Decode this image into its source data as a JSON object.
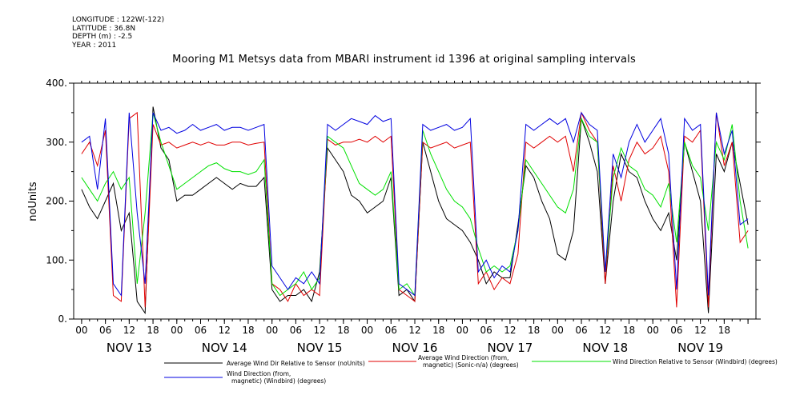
{
  "header": {
    "lines": [
      "LONGITUDE : 122W(-122)",
      "LATITUDE : 36.8N",
      "DEPTH (m) : -2.5",
      "YEAR : 2011"
    ]
  },
  "colors": {
    "black": "#000000",
    "red": "#e00000",
    "green": "#00e000",
    "blue": "#0000e0"
  },
  "chart_data": {
    "type": "line",
    "title": "Mooring M1 Metsys data from MBARI instrument id 1396 at original sampling intervals",
    "ylabel": "noUnits",
    "xlabel": "",
    "ylim": [
      0,
      400
    ],
    "yticks": [
      0,
      100,
      200,
      300,
      400
    ],
    "ytick_labels": [
      "0.",
      "100.",
      "200.",
      "300.",
      "400."
    ],
    "x_unit": "hours since NOV 13 00:00, 2011",
    "xlim": [
      -2,
      170
    ],
    "hour_tick_labels": [
      "00",
      "06",
      "12",
      "18"
    ],
    "day_labels": [
      "NOV 13",
      "NOV 14",
      "NOV 15",
      "NOV 16",
      "NOV 17",
      "NOV 18",
      "NOV 19"
    ],
    "grid": false,
    "legend_position": "bottom",
    "series": [
      {
        "name": "Average Wind Dir Relative to Sensor (noUnits)",
        "color": "black",
        "x": [
          0,
          2,
          4,
          6,
          8,
          10,
          12,
          14,
          16,
          18,
          20,
          22,
          24,
          26,
          28,
          30,
          32,
          34,
          36,
          38,
          40,
          42,
          44,
          46,
          48,
          50,
          52,
          54,
          56,
          58,
          60,
          62,
          64,
          66,
          68,
          70,
          72,
          74,
          76,
          78,
          80,
          82,
          84,
          86,
          88,
          90,
          92,
          94,
          96,
          98,
          100,
          102,
          104,
          106,
          108,
          110,
          112,
          114,
          116,
          118,
          120,
          122,
          124,
          126,
          128,
          130,
          132,
          134,
          136,
          138,
          140,
          142,
          144,
          146,
          148,
          150,
          152,
          154,
          156,
          158,
          160,
          162,
          164,
          166,
          168
        ],
        "values": [
          220,
          190,
          170,
          200,
          230,
          150,
          180,
          30,
          10,
          360,
          290,
          270,
          200,
          210,
          210,
          220,
          230,
          240,
          230,
          220,
          230,
          225,
          225,
          240,
          50,
          30,
          40,
          40,
          50,
          30,
          80,
          290,
          270,
          250,
          210,
          200,
          180,
          190,
          200,
          240,
          40,
          50,
          30,
          300,
          250,
          200,
          170,
          160,
          150,
          130,
          100,
          60,
          80,
          70,
          70,
          160,
          260,
          240,
          200,
          170,
          110,
          100,
          150,
          340,
          300,
          250,
          60,
          200,
          280,
          250,
          240,
          200,
          170,
          150,
          180,
          100,
          300,
          250,
          200,
          10,
          280,
          250,
          300,
          230,
          160
        ]
      },
      {
        "name": "Average Wind Direction (from, magnetic) (Sonic-n/a) (degrees)",
        "color": "red",
        "x": [
          0,
          2,
          4,
          6,
          8,
          10,
          12,
          14,
          16,
          18,
          20,
          22,
          24,
          26,
          28,
          30,
          32,
          34,
          36,
          38,
          40,
          42,
          44,
          46,
          48,
          50,
          52,
          54,
          56,
          58,
          60,
          62,
          64,
          66,
          68,
          70,
          72,
          74,
          76,
          78,
          80,
          82,
          84,
          86,
          88,
          90,
          92,
          94,
          96,
          98,
          100,
          102,
          104,
          106,
          108,
          110,
          112,
          114,
          116,
          118,
          120,
          122,
          124,
          126,
          128,
          130,
          132,
          134,
          136,
          138,
          140,
          142,
          144,
          146,
          148,
          150,
          152,
          154,
          156,
          158,
          160,
          162,
          164,
          166,
          168
        ],
        "values": [
          280,
          300,
          260,
          320,
          40,
          30,
          340,
          350,
          20,
          330,
          295,
          300,
          290,
          295,
          300,
          295,
          300,
          295,
          295,
          300,
          300,
          295,
          298,
          300,
          60,
          50,
          30,
          60,
          40,
          50,
          40,
          305,
          295,
          300,
          300,
          305,
          300,
          310,
          300,
          310,
          50,
          40,
          30,
          300,
          290,
          295,
          300,
          290,
          295,
          300,
          60,
          80,
          50,
          70,
          60,
          110,
          300,
          290,
          300,
          310,
          300,
          310,
          250,
          350,
          320,
          300,
          60,
          260,
          200,
          270,
          300,
          280,
          290,
          310,
          250,
          20,
          310,
          300,
          320,
          20,
          350,
          260,
          300,
          130,
          150
        ]
      },
      {
        "name": "Wind Direction Relative to Sensor (Windbird) (degrees)",
        "color": "green",
        "x": [
          0,
          2,
          4,
          6,
          8,
          10,
          12,
          14,
          16,
          18,
          20,
          22,
          24,
          26,
          28,
          30,
          32,
          34,
          36,
          38,
          40,
          42,
          44,
          46,
          48,
          50,
          52,
          54,
          56,
          58,
          60,
          62,
          64,
          66,
          68,
          70,
          72,
          74,
          76,
          78,
          80,
          82,
          84,
          86,
          88,
          90,
          92,
          94,
          96,
          98,
          100,
          102,
          104,
          106,
          108,
          110,
          112,
          114,
          116,
          118,
          120,
          122,
          124,
          126,
          128,
          130,
          132,
          134,
          136,
          138,
          140,
          142,
          144,
          146,
          148,
          150,
          152,
          154,
          156,
          158,
          160,
          162,
          164,
          166,
          168
        ],
        "values": [
          240,
          220,
          200,
          230,
          250,
          220,
          240,
          60,
          180,
          350,
          300,
          260,
          220,
          230,
          240,
          250,
          260,
          265,
          255,
          250,
          250,
          245,
          250,
          270,
          60,
          40,
          50,
          60,
          80,
          50,
          70,
          310,
          300,
          290,
          260,
          230,
          220,
          210,
          220,
          250,
          50,
          60,
          40,
          320,
          280,
          250,
          220,
          200,
          190,
          170,
          120,
          80,
          90,
          80,
          90,
          150,
          270,
          250,
          230,
          210,
          190,
          180,
          220,
          340,
          310,
          300,
          80,
          240,
          290,
          260,
          250,
          220,
          210,
          190,
          230,
          130,
          300,
          260,
          240,
          150,
          300,
          270,
          330,
          200,
          120
        ]
      },
      {
        "name": "Wind Direction (from, magnetic) (Windbird) (degrees)",
        "color": "blue",
        "x": [
          0,
          2,
          4,
          6,
          8,
          10,
          12,
          14,
          16,
          18,
          20,
          22,
          24,
          26,
          28,
          30,
          32,
          34,
          36,
          38,
          40,
          42,
          44,
          46,
          48,
          50,
          52,
          54,
          56,
          58,
          60,
          62,
          64,
          66,
          68,
          70,
          72,
          74,
          76,
          78,
          80,
          82,
          84,
          86,
          88,
          90,
          92,
          94,
          96,
          98,
          100,
          102,
          104,
          106,
          108,
          110,
          112,
          114,
          116,
          118,
          120,
          122,
          124,
          126,
          128,
          130,
          132,
          134,
          136,
          138,
          140,
          142,
          144,
          146,
          148,
          150,
          152,
          154,
          156,
          158,
          160,
          162,
          164,
          166,
          168
        ],
        "values": [
          300,
          310,
          220,
          340,
          60,
          40,
          350,
          180,
          60,
          350,
          320,
          325,
          315,
          320,
          330,
          320,
          325,
          330,
          320,
          325,
          325,
          320,
          325,
          330,
          90,
          70,
          50,
          70,
          60,
          80,
          60,
          330,
          320,
          330,
          340,
          335,
          330,
          345,
          335,
          340,
          60,
          50,
          40,
          330,
          320,
          325,
          330,
          320,
          325,
          340,
          80,
          100,
          70,
          90,
          80,
          150,
          330,
          320,
          330,
          340,
          330,
          340,
          300,
          350,
          330,
          320,
          80,
          280,
          240,
          300,
          330,
          300,
          320,
          340,
          280,
          50,
          340,
          320,
          330,
          40,
          350,
          280,
          320,
          160,
          170
        ]
      }
    ]
  }
}
